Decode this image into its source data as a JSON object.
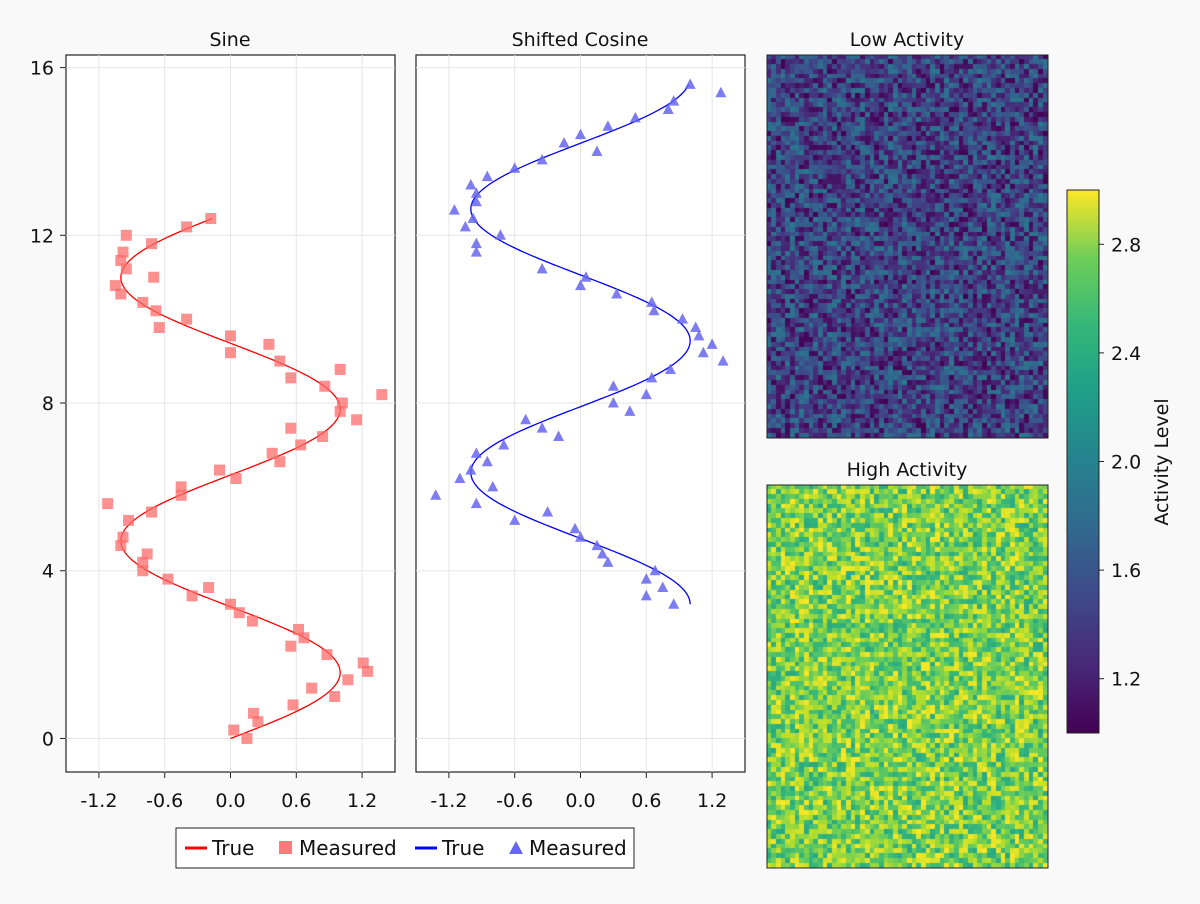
{
  "chart_data": [
    {
      "type": "line+scatter",
      "title": "Sine",
      "xlim": [
        -1.5,
        1.5
      ],
      "ylim": [
        -0.8,
        16.3
      ],
      "xticks": [
        -1.2,
        -0.6,
        0.0,
        0.6,
        1.2
      ],
      "xtick_labels": [
        "-1.2",
        "-0.6",
        "0.0",
        "0.6",
        "1.2"
      ],
      "yticks": [
        0,
        4,
        8,
        12,
        16
      ],
      "ytick_labels": [
        "0",
        "4",
        "8",
        "12",
        "16"
      ],
      "true_curve": {
        "name": "True",
        "function": "x = sin(y)",
        "y_range": [
          0,
          12.4
        ],
        "color": "#ff0000"
      },
      "measured": {
        "name": "Measured",
        "marker": "square",
        "color": "#ff6b6b",
        "points": [
          [
            0.03,
            0.2
          ],
          [
            0.15,
            0.0
          ],
          [
            0.25,
            0.4
          ],
          [
            0.21,
            0.6
          ],
          [
            0.57,
            0.8
          ],
          [
            0.95,
            1.0
          ],
          [
            0.74,
            1.2
          ],
          [
            1.07,
            1.4
          ],
          [
            1.21,
            1.8
          ],
          [
            1.25,
            1.6
          ],
          [
            0.88,
            2.0
          ],
          [
            0.55,
            2.2
          ],
          [
            0.67,
            2.4
          ],
          [
            0.62,
            2.6
          ],
          [
            0.2,
            2.8
          ],
          [
            0.08,
            3.0
          ],
          [
            0.0,
            3.2
          ],
          [
            -0.35,
            3.4
          ],
          [
            -0.2,
            3.6
          ],
          [
            -0.57,
            3.8
          ],
          [
            -0.8,
            4.0
          ],
          [
            -0.8,
            4.2
          ],
          [
            -0.76,
            4.4
          ],
          [
            -1.0,
            4.6
          ],
          [
            -0.98,
            4.8
          ],
          [
            -1.12,
            5.6
          ],
          [
            -0.93,
            5.2
          ],
          [
            -0.72,
            5.4
          ],
          [
            -0.45,
            5.8
          ],
          [
            -0.45,
            6.0
          ],
          [
            -0.1,
            6.4
          ],
          [
            0.05,
            6.2
          ],
          [
            0.38,
            6.8
          ],
          [
            0.45,
            6.6
          ],
          [
            0.64,
            7.0
          ],
          [
            0.84,
            7.2
          ],
          [
            0.55,
            7.4
          ],
          [
            1.15,
            7.6
          ],
          [
            1.0,
            7.8
          ],
          [
            1.02,
            8.0
          ],
          [
            1.38,
            8.2
          ],
          [
            0.86,
            8.4
          ],
          [
            0.55,
            8.6
          ],
          [
            0.45,
            9.0
          ],
          [
            1.0,
            8.8
          ],
          [
            0.35,
            9.4
          ],
          [
            0.0,
            9.6
          ],
          [
            0.0,
            9.2
          ],
          [
            -0.4,
            10.0
          ],
          [
            -0.65,
            9.8
          ],
          [
            -0.68,
            10.2
          ],
          [
            -0.8,
            10.4
          ],
          [
            -1.0,
            10.6
          ],
          [
            -1.05,
            10.8
          ],
          [
            -0.7,
            11.0
          ],
          [
            -0.95,
            11.2
          ],
          [
            -1.0,
            11.4
          ],
          [
            -0.98,
            11.6
          ],
          [
            -0.72,
            11.8
          ],
          [
            -0.95,
            12.0
          ],
          [
            -0.4,
            12.2
          ],
          [
            -0.18,
            12.4
          ]
        ]
      }
    },
    {
      "type": "line+scatter",
      "title": "Shifted Cosine",
      "xlim": [
        -1.5,
        1.5
      ],
      "ylim": [
        -0.8,
        16.3
      ],
      "xticks": [
        -1.2,
        -0.6,
        0.0,
        0.6,
        1.2
      ],
      "xtick_labels": [
        "-1.2",
        "-0.6",
        "0.0",
        "0.6",
        "1.2"
      ],
      "true_curve": {
        "name": "True",
        "function": "x = cos(y - 3.2)",
        "y_range": [
          3.2,
          15.6
        ],
        "color": "#0000ff"
      },
      "measured": {
        "name": "Measured",
        "marker": "triangle",
        "color": "#6666ee",
        "points": [
          [
            0.85,
            3.2
          ],
          [
            0.6,
            3.4
          ],
          [
            0.75,
            3.6
          ],
          [
            0.6,
            3.8
          ],
          [
            0.68,
            4.0
          ],
          [
            0.25,
            4.2
          ],
          [
            0.2,
            4.4
          ],
          [
            0.15,
            4.6
          ],
          [
            0.0,
            4.8
          ],
          [
            -0.05,
            5.0
          ],
          [
            -0.6,
            5.2
          ],
          [
            -0.3,
            5.4
          ],
          [
            -0.95,
            5.6
          ],
          [
            -1.32,
            5.8
          ],
          [
            -0.8,
            6.0
          ],
          [
            -1.1,
            6.2
          ],
          [
            -1.0,
            6.4
          ],
          [
            -0.85,
            6.6
          ],
          [
            -0.95,
            6.8
          ],
          [
            -0.7,
            7.0
          ],
          [
            -0.2,
            7.2
          ],
          [
            -0.35,
            7.4
          ],
          [
            -0.5,
            7.6
          ],
          [
            0.45,
            7.8
          ],
          [
            0.3,
            8.0
          ],
          [
            0.6,
            8.2
          ],
          [
            0.3,
            8.4
          ],
          [
            0.65,
            8.6
          ],
          [
            0.82,
            8.8
          ],
          [
            1.3,
            9.0
          ],
          [
            1.12,
            9.2
          ],
          [
            1.2,
            9.4
          ],
          [
            1.08,
            9.6
          ],
          [
            1.05,
            9.8
          ],
          [
            0.93,
            10.0
          ],
          [
            0.67,
            10.2
          ],
          [
            0.65,
            10.4
          ],
          [
            0.33,
            10.6
          ],
          [
            0.0,
            10.8
          ],
          [
            0.05,
            11.0
          ],
          [
            -0.35,
            11.2
          ],
          [
            -0.95,
            11.6
          ],
          [
            -0.95,
            11.8
          ],
          [
            -0.73,
            12.0
          ],
          [
            -1.05,
            12.2
          ],
          [
            -0.98,
            12.4
          ],
          [
            -1.15,
            12.6
          ],
          [
            -0.95,
            12.8
          ],
          [
            -0.95,
            13.0
          ],
          [
            -1.0,
            13.2
          ],
          [
            -0.85,
            13.4
          ],
          [
            -0.6,
            13.6
          ],
          [
            -0.35,
            13.8
          ],
          [
            0.15,
            14.0
          ],
          [
            -0.15,
            14.2
          ],
          [
            0.0,
            14.4
          ],
          [
            0.25,
            14.6
          ],
          [
            0.5,
            14.8
          ],
          [
            0.8,
            15.0
          ],
          [
            0.85,
            15.2
          ],
          [
            1.28,
            15.4
          ],
          [
            1.0,
            15.6
          ]
        ]
      }
    },
    {
      "type": "heatmap",
      "title": "Low Activity",
      "grid": [
        60,
        80
      ],
      "value_range": [
        1.0,
        1.8
      ],
      "colormap": "viridis"
    },
    {
      "type": "heatmap",
      "title": "High Activity",
      "grid": [
        60,
        80
      ],
      "value_range": [
        2.2,
        3.0
      ],
      "colormap": "viridis"
    }
  ],
  "colorbar": {
    "label": "Activity Level",
    "range": [
      1.0,
      3.0
    ],
    "ticks": [
      1.2,
      1.6,
      2.0,
      2.4,
      2.8
    ],
    "tick_labels": [
      "1.2",
      "1.6",
      "2.0",
      "2.4",
      "2.8"
    ],
    "colormap": "viridis"
  },
  "legend": {
    "placement": "bottom",
    "items": [
      {
        "label": "True",
        "kind": "line",
        "color": "#ff0000"
      },
      {
        "label": "Measured",
        "kind": "square",
        "color": "#ff7b7b"
      },
      {
        "label": "True",
        "kind": "line",
        "color": "#0000ff"
      },
      {
        "label": "Measured",
        "kind": "triangle",
        "color": "#6666ee"
      }
    ]
  }
}
